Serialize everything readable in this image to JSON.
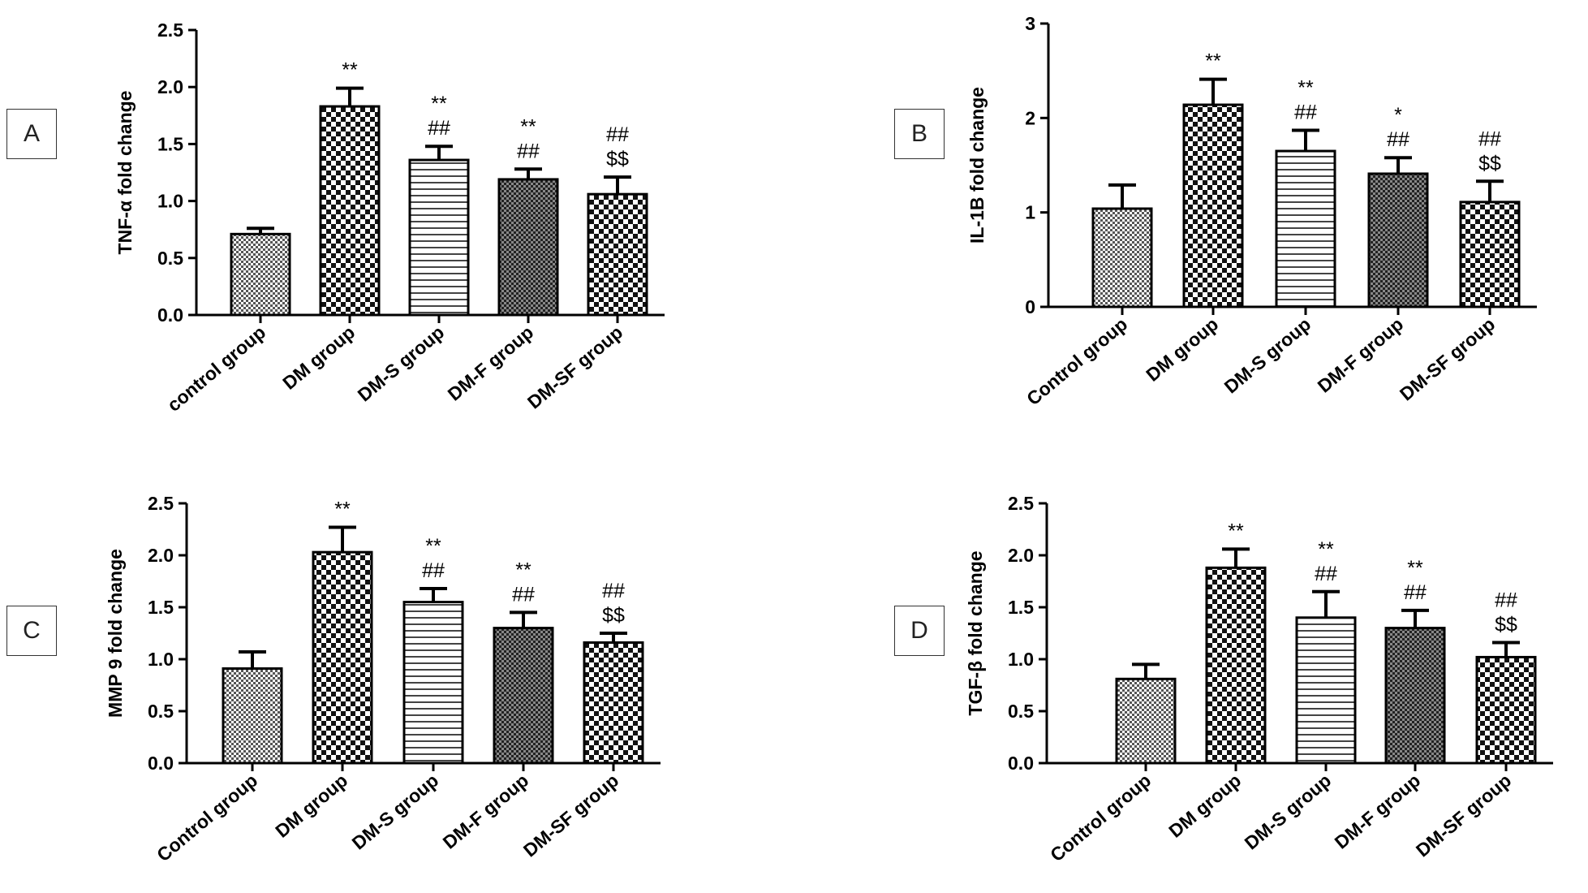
{
  "panels": [
    {
      "label": "A",
      "chart_data": {
        "type": "bar",
        "ylabel": "TNF-α fold change",
        "ylim": [
          0,
          2.5
        ],
        "yticks": [
          "0.0",
          "0.5",
          "1.0",
          "1.5",
          "2.0",
          "2.5"
        ],
        "categories": [
          "control group",
          "DM group",
          "DM-S group",
          "DM-F group",
          "DM-SF group"
        ],
        "values": [
          0.71,
          1.83,
          1.36,
          1.19,
          1.06
        ],
        "errors": [
          0.05,
          0.16,
          0.12,
          0.09,
          0.15
        ],
        "patterns": [
          "checker-fine",
          "checker-bold",
          "hstripes",
          "checker-dark",
          "checker-bold"
        ],
        "annotations": [
          [],
          [
            "**"
          ],
          [
            "**",
            "##"
          ],
          [
            "**",
            "##"
          ],
          [
            "##",
            "$$"
          ]
        ]
      }
    },
    {
      "label": "B",
      "chart_data": {
        "type": "bar",
        "ylabel": "IL-1B fold change",
        "ylim": [
          0,
          3
        ],
        "yticks": [
          "0",
          "1",
          "2",
          "3"
        ],
        "categories": [
          "Control group",
          "DM group",
          "DM-S group",
          "DM-F group",
          "DM-SF group"
        ],
        "values": [
          1.04,
          2.14,
          1.65,
          1.41,
          1.11
        ],
        "errors": [
          0.25,
          0.27,
          0.22,
          0.17,
          0.22
        ],
        "patterns": [
          "checker-fine",
          "checker-bold",
          "hstripes",
          "checker-dark",
          "checker-bold"
        ],
        "annotations": [
          [],
          [
            "**"
          ],
          [
            "**",
            "##"
          ],
          [
            "*",
            "##"
          ],
          [
            "##",
            "$$"
          ]
        ]
      }
    },
    {
      "label": "C",
      "chart_data": {
        "type": "bar",
        "ylabel": "MMP 9 fold change",
        "ylim": [
          0,
          2.5
        ],
        "yticks": [
          "0.0",
          "0.5",
          "1.0",
          "1.5",
          "2.0",
          "2.5"
        ],
        "categories": [
          "Control group",
          "DM group",
          "DM-S group",
          "DM-F group",
          "DM-SF group"
        ],
        "values": [
          0.91,
          2.03,
          1.55,
          1.3,
          1.16
        ],
        "errors": [
          0.16,
          0.24,
          0.13,
          0.15,
          0.09
        ],
        "patterns": [
          "checker-fine",
          "checker-bold",
          "hstripes",
          "checker-dark",
          "checker-bold"
        ],
        "annotations": [
          [],
          [
            "**"
          ],
          [
            "**",
            "##"
          ],
          [
            "**",
            "##"
          ],
          [
            "##",
            "$$"
          ]
        ]
      }
    },
    {
      "label": "D",
      "chart_data": {
        "type": "bar",
        "ylabel": "TGF-β fold change",
        "ylim": [
          0,
          2.5
        ],
        "yticks": [
          "0.0",
          "0.5",
          "1.0",
          "1.5",
          "2.0",
          "2.5"
        ],
        "categories": [
          "Control group",
          "DM group",
          "DM-S group",
          "DM-F group",
          "DM-SF group"
        ],
        "values": [
          0.81,
          1.88,
          1.4,
          1.3,
          1.02
        ],
        "errors": [
          0.14,
          0.18,
          0.25,
          0.17,
          0.14
        ],
        "patterns": [
          "checker-fine",
          "checker-bold",
          "hstripes",
          "checker-dark",
          "checker-bold"
        ],
        "annotations": [
          [],
          [
            "**"
          ],
          [
            "**",
            "##"
          ],
          [
            "**",
            "##"
          ],
          [
            "##",
            "$$"
          ]
        ]
      }
    }
  ]
}
